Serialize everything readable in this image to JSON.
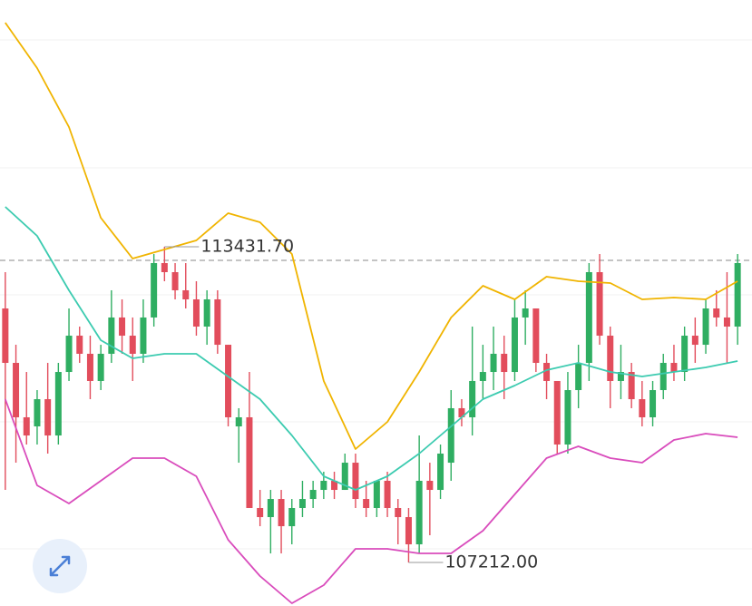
{
  "chart_data": {
    "type": "candlestick",
    "ylim": [
      106355,
      118292
    ],
    "yticks": [
      117506,
      114986,
      112484,
      109982,
      107481
    ],
    "grid": true,
    "up_color": "#2fae62",
    "down_color": "#e24d5c",
    "price_line": 113163,
    "candles": [
      [
        112216,
        112931,
        108642,
        111144
      ],
      [
        111144,
        111501,
        109178,
        110072
      ],
      [
        110072,
        110965,
        109536,
        109714
      ],
      [
        109893,
        110608,
        109536,
        110429
      ],
      [
        110429,
        111144,
        109357,
        109714
      ],
      [
        109714,
        111144,
        109536,
        110965
      ],
      [
        110965,
        112216,
        110787,
        111680
      ],
      [
        111680,
        111859,
        111144,
        111323
      ],
      [
        111323,
        111680,
        110429,
        110787
      ],
      [
        110787,
        111501,
        110608,
        111323
      ],
      [
        111323,
        112574,
        111144,
        112038
      ],
      [
        112038,
        112395,
        111323,
        111680
      ],
      [
        111680,
        112038,
        110787,
        111323
      ],
      [
        111323,
        112395,
        111144,
        112038
      ],
      [
        112038,
        113288,
        111859,
        113110
      ],
      [
        113110,
        113431.7,
        112752,
        112931
      ],
      [
        112931,
        113110,
        112395,
        112574
      ],
      [
        112574,
        113110,
        112216,
        112395
      ],
      [
        112395,
        112752,
        111680,
        111859
      ],
      [
        111859,
        112574,
        111501,
        112395
      ],
      [
        112395,
        112574,
        111323,
        111501
      ],
      [
        111501,
        111501,
        109893,
        110072
      ],
      [
        109893,
        110251,
        109178,
        110072
      ],
      [
        110072,
        110965,
        108285,
        108285
      ],
      [
        108285,
        108642,
        107927,
        108106
      ],
      [
        108106,
        108642,
        107391,
        108463
      ],
      [
        108463,
        108642,
        107391,
        107927
      ],
      [
        107927,
        108463,
        107570,
        108285
      ],
      [
        108285,
        108821,
        108106,
        108463
      ],
      [
        108463,
        108821,
        108285,
        108642
      ],
      [
        108642,
        109000,
        108463,
        108821
      ],
      [
        108821,
        109000,
        108463,
        108642
      ],
      [
        108642,
        109357,
        108642,
        109178
      ],
      [
        109178,
        109357,
        108285,
        108463
      ],
      [
        108463,
        108821,
        108106,
        108285
      ],
      [
        108285,
        108821,
        108106,
        108821
      ],
      [
        108821,
        109000,
        108106,
        108285
      ],
      [
        108285,
        108463,
        107570,
        108106
      ],
      [
        108106,
        108285,
        107212,
        107570
      ],
      [
        107570,
        109714,
        107391,
        108821
      ],
      [
        108821,
        109178,
        107749,
        108642
      ],
      [
        108642,
        109536,
        108463,
        109357
      ],
      [
        109178,
        110608,
        108821,
        110251
      ],
      [
        110251,
        110429,
        109893,
        110072
      ],
      [
        110072,
        111859,
        109714,
        110787
      ],
      [
        110787,
        111501,
        110429,
        110965
      ],
      [
        110965,
        111859,
        110608,
        111323
      ],
      [
        111323,
        111680,
        110429,
        110965
      ],
      [
        110965,
        112395,
        110787,
        112038
      ],
      [
        112038,
        112574,
        111501,
        112216
      ],
      [
        112216,
        112216,
        110965,
        111144
      ],
      [
        111144,
        111323,
        110429,
        110787
      ],
      [
        110787,
        110787,
        109357,
        109536
      ],
      [
        109536,
        110965,
        109357,
        110608
      ],
      [
        110608,
        111501,
        110251,
        111144
      ],
      [
        111144,
        113110,
        110787,
        112931
      ],
      [
        112931,
        113288,
        111501,
        111680
      ],
      [
        111680,
        111859,
        110251,
        110787
      ],
      [
        110787,
        111501,
        110429,
        110965
      ],
      [
        110965,
        111144,
        110251,
        110429
      ],
      [
        110429,
        110787,
        109893,
        110072
      ],
      [
        110072,
        110787,
        109893,
        110608
      ],
      [
        110608,
        111323,
        110429,
        111144
      ],
      [
        111144,
        111501,
        110787,
        110965
      ],
      [
        110965,
        111859,
        110787,
        111680
      ],
      [
        111680,
        112038,
        111144,
        111501
      ],
      [
        111501,
        112395,
        111323,
        112216
      ],
      [
        112216,
        112574,
        111859,
        112038
      ],
      [
        112038,
        112931,
        111144,
        111859
      ],
      [
        111859,
        113288,
        111501,
        113110
      ]
    ],
    "x": [
      0,
      3,
      6,
      9,
      12,
      15,
      18,
      21,
      24,
      27,
      30,
      33,
      36,
      39,
      42,
      45,
      48,
      51,
      54,
      57,
      60,
      63,
      66,
      69
    ],
    "series": [
      {
        "color": "#f0b400",
        "values": [
          117845,
          116952,
          115790,
          114003,
          113199,
          113378,
          113557,
          114093,
          113914,
          113288,
          110787,
          109446,
          109982,
          110965,
          112038,
          112663,
          112395,
          112842,
          112752,
          112717,
          112395,
          112431,
          112395,
          112752
        ]
      },
      {
        "color": "#3ccbb0",
        "values": [
          114218,
          113646,
          112574,
          111591,
          111233,
          111323,
          111323,
          110876,
          110429,
          109714,
          108910,
          108642,
          108910,
          109357,
          109893,
          110429,
          110697,
          111001,
          111144,
          110965,
          110876,
          110965,
          111055,
          111180
        ]
      },
      {
        "color": "#d94cbc",
        "values": [
          110429,
          108732,
          108374,
          108821,
          109268,
          109268,
          108910,
          107660,
          106945,
          106408,
          106766,
          107481,
          107481,
          107391,
          107391,
          107838,
          108553,
          109268,
          109500,
          109268,
          109178,
          109625,
          109750,
          109679
        ]
      }
    ],
    "annotations": [
      {
        "value": 113431.7,
        "label": "113431.70"
      },
      {
        "value": 107212,
        "label": "107212.00"
      }
    ]
  }
}
